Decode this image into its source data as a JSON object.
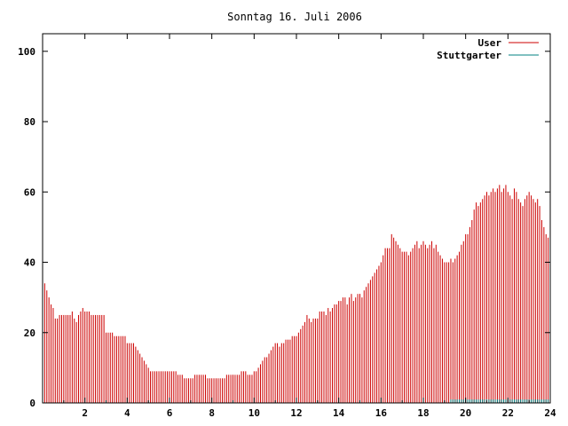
{
  "chart_data": {
    "type": "bar",
    "title": "Sonntag 16. Juli 2006",
    "xlabel": "",
    "ylabel": "",
    "xlim": [
      0,
      24
    ],
    "ylim": [
      0,
      105
    ],
    "xticks": [
      "2",
      "4",
      "6",
      "8",
      "10",
      "12",
      "14",
      "16",
      "18",
      "20",
      "22",
      "24"
    ],
    "yticks": [
      "0",
      "20",
      "40",
      "60",
      "80",
      "100"
    ],
    "legend_position": "top-right",
    "series": [
      {
        "name": "User",
        "color": "#cc0000",
        "x_start": 0,
        "x_step": 0.1,
        "values": [
          40,
          34,
          32,
          30,
          28,
          27,
          24,
          24,
          25,
          25,
          25,
          25,
          25,
          25,
          26,
          24,
          23,
          25,
          26,
          27,
          26,
          26,
          26,
          25,
          25,
          25,
          25,
          25,
          25,
          25,
          20,
          20,
          20,
          20,
          19,
          19,
          19,
          19,
          19,
          19,
          17,
          17,
          17,
          17,
          16,
          15,
          14,
          13,
          12,
          11,
          10,
          9,
          9,
          9,
          9,
          9,
          9,
          9,
          9,
          9,
          9,
          9,
          9,
          9,
          8,
          8,
          8,
          7,
          7,
          7,
          7,
          7,
          8,
          8,
          8,
          8,
          8,
          8,
          7,
          7,
          7,
          7,
          7,
          7,
          7,
          7,
          7,
          8,
          8,
          8,
          8,
          8,
          8,
          8,
          9,
          9,
          9,
          8,
          8,
          8,
          9,
          9,
          10,
          11,
          12,
          13,
          13,
          14,
          15,
          16,
          17,
          17,
          16,
          17,
          17,
          18,
          18,
          18,
          19,
          19,
          19,
          20,
          21,
          22,
          23,
          25,
          24,
          23,
          24,
          24,
          24,
          26,
          26,
          26,
          25,
          27,
          26,
          27,
          28,
          28,
          29,
          29,
          30,
          30,
          28,
          30,
          31,
          29,
          30,
          31,
          31,
          30,
          32,
          33,
          34,
          35,
          36,
          37,
          38,
          39,
          40,
          42,
          44,
          44,
          44,
          48,
          47,
          46,
          45,
          44,
          43,
          43,
          43,
          42,
          43,
          44,
          45,
          46,
          44,
          45,
          46,
          45,
          44,
          45,
          46,
          44,
          45,
          43,
          42,
          41,
          40,
          40,
          40,
          41,
          40,
          41,
          42,
          43,
          45,
          46,
          48,
          48,
          50,
          52,
          55,
          57,
          56,
          57,
          58,
          59,
          60,
          59,
          60,
          61,
          60,
          61,
          62,
          60,
          61,
          62,
          60,
          59,
          58,
          61,
          60,
          58,
          57,
          56,
          58,
          59,
          60,
          59,
          58,
          57,
          58,
          56,
          52,
          50,
          48,
          47
        ]
      },
      {
        "name": "Stuttgarter",
        "color": "#008080",
        "x_start": 19.3,
        "x_step": 0.1,
        "values": [
          1,
          1,
          1,
          1,
          1,
          1,
          1,
          1,
          1,
          1,
          1,
          1,
          1,
          1,
          1,
          1,
          1,
          1,
          1,
          1,
          1,
          1,
          1,
          1,
          1,
          1,
          1,
          1,
          1,
          1,
          1,
          1,
          1,
          1,
          1,
          1,
          1,
          1,
          1,
          1,
          1,
          1,
          1,
          1,
          1,
          1,
          1
        ]
      }
    ]
  }
}
